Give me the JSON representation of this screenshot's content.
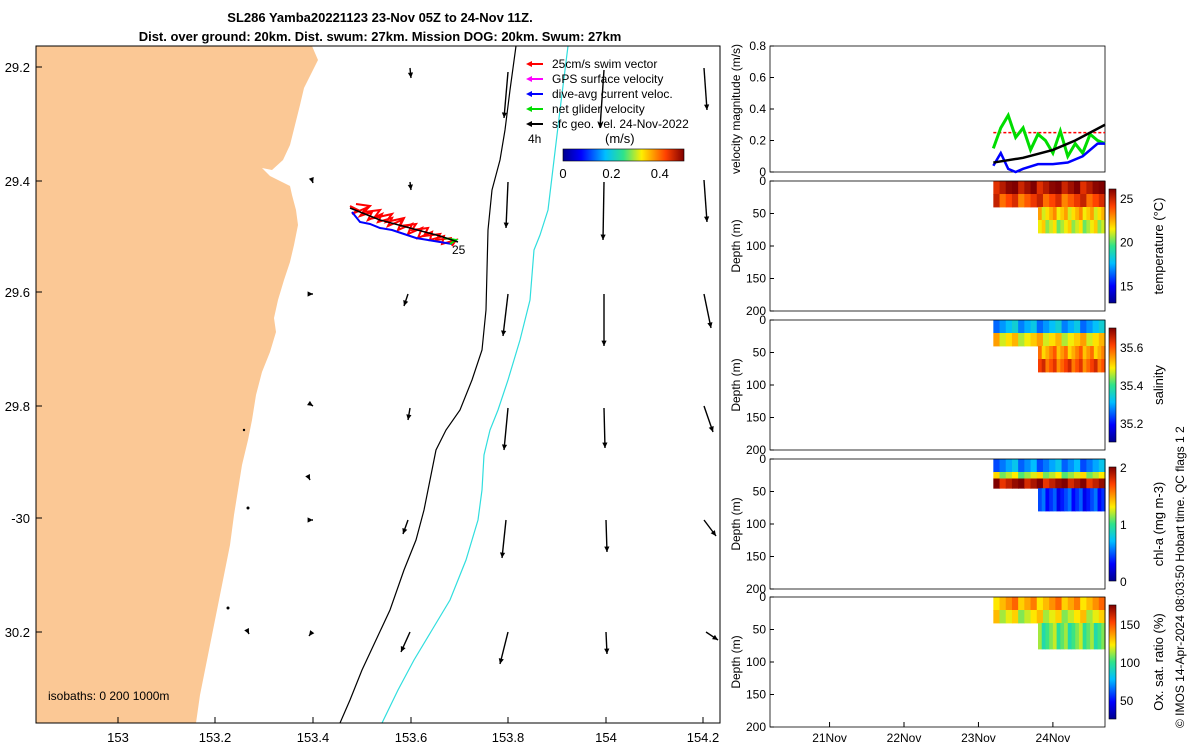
{
  "header": {
    "title_line1": "SL286 Yamba20221123 23-Nov 05Z to 24-Nov 11Z.",
    "title_line2": "Dist. over ground: 20km. Dist. swum: 27km. Mission DOG: 20km. Swum: 27km"
  },
  "colors": {
    "land": "#fbc895",
    "swim": "#ff0000",
    "gps": "#ff00ff",
    "dive_avg": "#0000ff",
    "net": "#00dd00",
    "geo": "#000000",
    "isobath_200": "#000000",
    "isobath_1000": "#30dede"
  },
  "map": {
    "lon_ticks": [
      "153",
      "153.2",
      "153.4",
      "153.6",
      "153.8",
      "154",
      "154.2"
    ],
    "lat_ticks": [
      "29.2",
      "29.4",
      "29.6",
      "29.8",
      "-30",
      "30.2"
    ],
    "isobaths_label": "isobaths: 0   200  1000m",
    "track_label": "25",
    "legend": [
      {
        "label": "25cm/s swim vector",
        "color": "#ff0000"
      },
      {
        "label": "GPS surface velocity",
        "color": "#ff00ff"
      },
      {
        "label": "dive-avg current veloc.",
        "color": "#0000ff"
      },
      {
        "label": "net glider velocity",
        "color": "#00dd00"
      },
      {
        "label": "sfc geo. vel. 24-Nov-2022",
        "color": "#000000"
      }
    ],
    "colorbar": {
      "label": "(m/s)",
      "scale_label": "4h",
      "ticks": [
        "0",
        "0.2",
        "0.4"
      ],
      "range": [
        0,
        0.5
      ]
    }
  },
  "panels": {
    "velocity": {
      "ylabel": "velocity magnitude (m/s)",
      "yticks": [
        "0",
        "0.2",
        "0.4",
        "0.6",
        "0.8"
      ],
      "ylim": [
        0,
        0.8
      ]
    },
    "temperature": {
      "ylabel": "Depth (m)",
      "cbar_label": "temperature (°C)",
      "yticks": [
        "0",
        "50",
        "100",
        "150",
        "200"
      ],
      "cbar_ticks": [
        "15",
        "20",
        "25"
      ],
      "cbar_range": [
        13,
        26
      ]
    },
    "salinity": {
      "ylabel": "Depth (m)",
      "cbar_label": "salinity",
      "yticks": [
        "0",
        "50",
        "100",
        "150",
        "200"
      ],
      "cbar_ticks": [
        "35.2",
        "35.4",
        "35.6"
      ],
      "cbar_range": [
        35.1,
        35.7
      ]
    },
    "chla": {
      "ylabel": "Depth (m)",
      "cbar_label": "chl-a (mg m-3)",
      "yticks": [
        "0",
        "50",
        "100",
        "150",
        "200"
      ],
      "cbar_ticks": [
        "0",
        "1",
        "2"
      ],
      "cbar_range": [
        0,
        2
      ]
    },
    "oxygen": {
      "ylabel": "Depth (m)",
      "cbar_label": "Ox. sat. ratio (%)",
      "yticks": [
        "0",
        "50",
        "100",
        "150",
        "200"
      ],
      "cbar_ticks": [
        "50",
        "100",
        "150"
      ],
      "cbar_range": [
        25,
        175
      ]
    },
    "time_ticks": [
      "21Nov",
      "22Nov",
      "23Nov",
      "24Nov"
    ]
  },
  "footer_note": "© IMOS 14-Apr-2024 08:03:50 Hobart time. QC flags 1  2",
  "chart_data": [
    {
      "type": "line",
      "title": "velocity magnitude",
      "x_unit": "day of Nov 2022",
      "xlim": [
        20.2,
        24.7
      ],
      "ylim": [
        0,
        0.8
      ],
      "series": [
        {
          "name": "25cm/s swim vector",
          "x": [
            23.2,
            24.7
          ],
          "values": [
            0.25,
            0.25
          ]
        },
        {
          "name": "net glider velocity",
          "x": [
            23.2,
            23.3,
            23.4,
            23.5,
            23.6,
            23.7,
            23.8,
            23.9,
            24.0,
            24.1,
            24.2,
            24.3,
            24.4,
            24.5,
            24.6,
            24.7
          ],
          "values": [
            0.15,
            0.28,
            0.36,
            0.22,
            0.28,
            0.14,
            0.24,
            0.2,
            0.12,
            0.26,
            0.1,
            0.18,
            0.12,
            0.24,
            0.2,
            0.18
          ]
        },
        {
          "name": "dive-avg current veloc.",
          "x": [
            23.2,
            23.3,
            23.4,
            23.5,
            23.6,
            23.8,
            24.0,
            24.2,
            24.4,
            24.6,
            24.7
          ],
          "values": [
            0.04,
            0.12,
            0.02,
            0.0,
            0.02,
            0.05,
            0.05,
            0.06,
            0.1,
            0.18,
            0.18
          ]
        },
        {
          "name": "sfc geo. vel. 24-Nov-2022",
          "x": [
            23.2,
            23.6,
            24.0,
            24.3,
            24.7
          ],
          "values": [
            0.06,
            0.09,
            0.14,
            0.2,
            0.3
          ]
        }
      ]
    },
    {
      "type": "heatmap",
      "title": "temperature (°C)",
      "xlim": [
        20.2,
        24.7
      ],
      "ylim": [
        200,
        0
      ],
      "times": [
        23.2,
        23.5,
        23.8,
        24.1,
        24.4,
        24.7
      ],
      "depth_layers": [
        [
          0,
          20,
          25.5
        ],
        [
          20,
          40,
          24.0
        ],
        [
          40,
          60,
          22.0
        ],
        [
          60,
          80,
          21.0
        ]
      ]
    },
    {
      "type": "heatmap",
      "title": "salinity",
      "xlim": [
        20.2,
        24.7
      ],
      "ylim": [
        200,
        0
      ],
      "depth_layers": [
        [
          0,
          20,
          35.3
        ],
        [
          20,
          40,
          35.5
        ],
        [
          40,
          60,
          35.55
        ],
        [
          60,
          80,
          35.6
        ]
      ]
    },
    {
      "type": "heatmap",
      "title": "chl-a (mg m-3)",
      "xlim": [
        20.2,
        24.7
      ],
      "ylim": [
        200,
        0
      ],
      "depth_layers": [
        [
          0,
          20,
          0.6
        ],
        [
          20,
          30,
          1.2
        ],
        [
          30,
          45,
          1.9
        ],
        [
          45,
          80,
          0.4
        ]
      ]
    },
    {
      "type": "heatmap",
      "title": "Ox. sat. ratio (%)",
      "xlim": [
        20.2,
        24.7
      ],
      "ylim": [
        200,
        0
      ],
      "depth_layers": [
        [
          0,
          20,
          135
        ],
        [
          20,
          40,
          120
        ],
        [
          40,
          80,
          105
        ]
      ]
    }
  ]
}
